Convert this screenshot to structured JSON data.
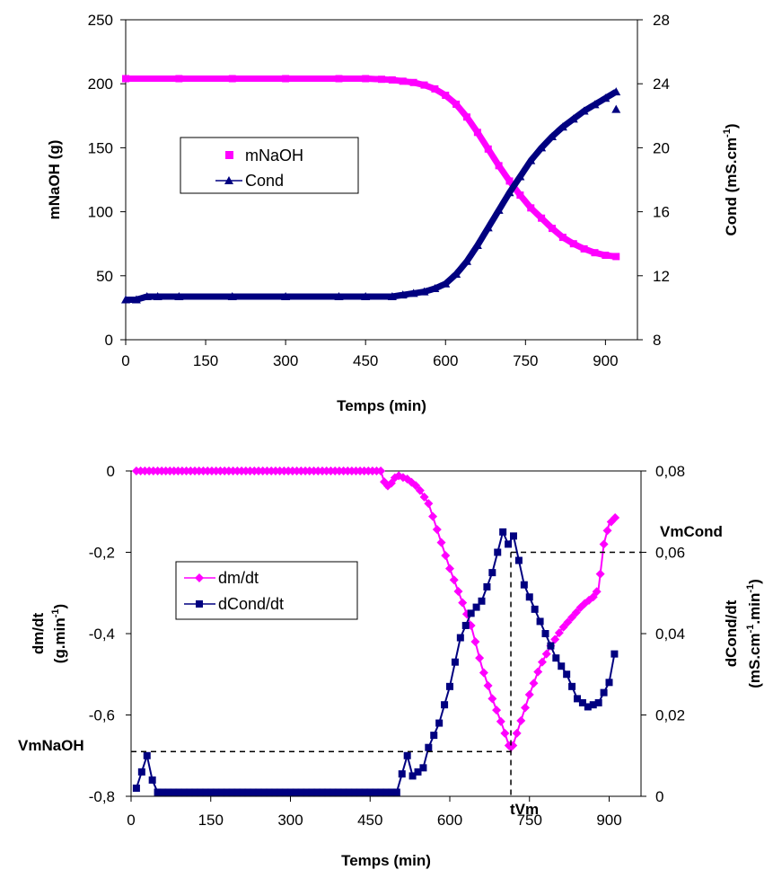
{
  "chart_data": [
    {
      "type": "line",
      "xlabel": "Temps (min)",
      "ylabel_left": "mNaOH (g)",
      "ylabel_right": "Cond (mS.cm",
      "ylabel_right_sup": "-1",
      "ylabel_right_end": ")",
      "xlim": [
        0,
        960
      ],
      "ylim_left": [
        0,
        250
      ],
      "ylim_right": [
        8,
        28
      ],
      "x_ticks": [
        "0",
        "150",
        "300",
        "450",
        "600",
        "750",
        "900"
      ],
      "y_ticks_left": [
        "0",
        "50",
        "100",
        "150",
        "200",
        "250"
      ],
      "y_ticks_right": [
        "8",
        "12",
        "16",
        "20",
        "24",
        "28"
      ],
      "grid": false,
      "legend_position": "left-middle",
      "series": [
        {
          "name": "mNaOH",
          "axis": "left",
          "marker": "square",
          "color": "#ff00ff",
          "x": [
            0,
            100,
            200,
            300,
            400,
            450,
            480,
            500,
            520,
            540,
            560,
            580,
            600,
            620,
            640,
            660,
            680,
            700,
            720,
            740,
            760,
            780,
            800,
            820,
            840,
            860,
            880,
            900,
            920
          ],
          "y": [
            204,
            204,
            204,
            204,
            204,
            204,
            203.5,
            203,
            202,
            201,
            199,
            196,
            191,
            184,
            174,
            162,
            149,
            136,
            124,
            113,
            103,
            95,
            87,
            80,
            75,
            71,
            68,
            66,
            65
          ]
        },
        {
          "name": "Cond",
          "axis": "right",
          "marker": "triangle",
          "color": "#000080",
          "x": [
            0,
            20,
            40,
            60,
            100,
            200,
            300,
            400,
            450,
            500,
            520,
            540,
            560,
            580,
            600,
            620,
            640,
            660,
            680,
            700,
            720,
            740,
            760,
            780,
            800,
            820,
            840,
            860,
            880,
            900,
            920
          ],
          "y": [
            10.5,
            10.5,
            10.7,
            10.7,
            10.7,
            10.7,
            10.7,
            10.7,
            10.7,
            10.7,
            10.8,
            10.9,
            11.0,
            11.2,
            11.5,
            12.1,
            12.9,
            13.9,
            15.0,
            16.1,
            17.2,
            18.2,
            19.2,
            20.0,
            20.7,
            21.3,
            21.8,
            22.3,
            22.7,
            23.1,
            23.5
          ]
        }
      ]
    },
    {
      "type": "line",
      "xlabel": "Temps (min)",
      "ylabel_left_line1": "dm/dt",
      "ylabel_left_line2": "(g.min",
      "ylabel_left_sup": "-1",
      "ylabel_left_end": ")",
      "ylabel_right_line1": "dCond/dt",
      "ylabel_right_line2a": "(mS.cm",
      "ylabel_right_sup1": "-1",
      "ylabel_right_line2b": ".min",
      "ylabel_right_sup2": "-1",
      "ylabel_right_line2c": ")",
      "xlim": [
        0,
        960
      ],
      "ylim_left": [
        -0.8,
        0
      ],
      "ylim_right": [
        0,
        0.08
      ],
      "x_ticks": [
        "0",
        "150",
        "300",
        "450",
        "600",
        "750",
        "900"
      ],
      "y_ticks_left": [
        "0",
        "-0,2",
        "-0,4",
        "-0,6",
        "-0,8"
      ],
      "y_ticks_right": [
        "0",
        "0,02",
        "0,04",
        "0,06",
        "0,08"
      ],
      "grid": false,
      "legend_position": "left-middle",
      "annotations": {
        "VmNaOH": "VmNaOH",
        "VmCond": "VmCond",
        "tVm": "tVm",
        "VmNaOH_value": -0.69,
        "VmCond_value": 0.06,
        "tVm_value": 715
      },
      "series": [
        {
          "name": "dm/dt",
          "axis": "left",
          "marker": "diamond",
          "color": "#ff00ff",
          "x": [
            10,
            50,
            100,
            200,
            300,
            400,
            470,
            480,
            490,
            500,
            520,
            540,
            560,
            580,
            600,
            620,
            640,
            660,
            680,
            700,
            715,
            730,
            750,
            770,
            790,
            810,
            830,
            850,
            870,
            880,
            890,
            900,
            915
          ],
          "y": [
            0,
            0,
            0,
            0,
            0,
            0,
            0,
            -0.04,
            -0.03,
            -0.01,
            -0.02,
            -0.04,
            -0.08,
            -0.16,
            -0.24,
            -0.31,
            -0.38,
            -0.48,
            -0.56,
            -0.63,
            -0.69,
            -0.63,
            -0.55,
            -0.48,
            -0.43,
            -0.39,
            -0.36,
            -0.33,
            -0.31,
            -0.29,
            -0.18,
            -0.13,
            -0.11
          ]
        },
        {
          "name": "dCond/dt",
          "axis": "right",
          "marker": "square",
          "color": "#000080",
          "x": [
            10,
            20,
            30,
            40,
            50,
            100,
            200,
            300,
            400,
            480,
            500,
            520,
            530,
            540,
            550,
            560,
            580,
            600,
            620,
            640,
            660,
            680,
            700,
            710,
            720,
            730,
            740,
            760,
            780,
            800,
            820,
            840,
            860,
            880,
            900,
            910
          ],
          "y": [
            0.002,
            0.006,
            0.01,
            0.004,
            0.001,
            0.001,
            0.001,
            0.001,
            0.001,
            0.001,
            0.001,
            0.01,
            0.005,
            0.006,
            0.007,
            0.012,
            0.018,
            0.027,
            0.039,
            0.045,
            0.048,
            0.055,
            0.065,
            0.062,
            0.064,
            0.058,
            0.052,
            0.046,
            0.04,
            0.034,
            0.03,
            0.024,
            0.022,
            0.023,
            0.028,
            0.035
          ]
        }
      ]
    }
  ]
}
